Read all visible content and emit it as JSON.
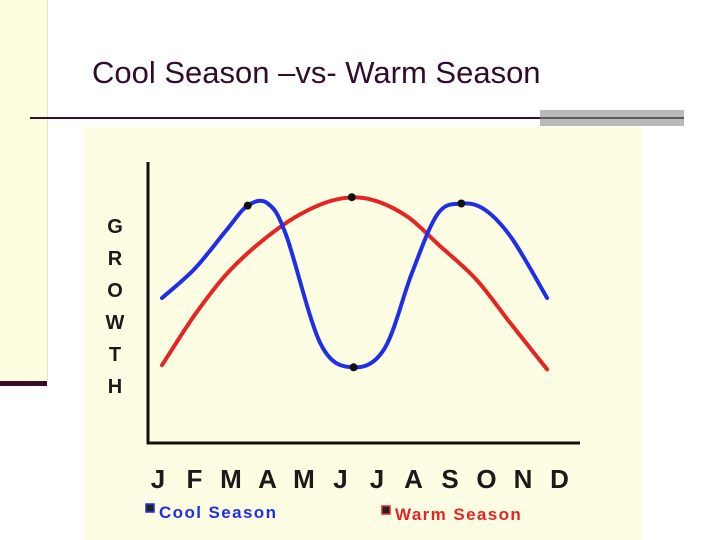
{
  "slide": {
    "title": "Cool Season –vs- Warm Season"
  },
  "chart_data": {
    "type": "line",
    "title": "",
    "xlabel": "",
    "ylabel": "GROWTH",
    "categories": [
      "J",
      "F",
      "M",
      "A",
      "M",
      "J",
      "J",
      "A",
      "S",
      "O",
      "N",
      "D"
    ],
    "ylim": [
      0,
      100
    ],
    "grid": false,
    "legend": "bottom",
    "series": [
      {
        "name": "Cool Season",
        "color": "#1f2ee8",
        "x": [
          0,
          0.9,
          1.75,
          2.35,
          2.9,
          3.4,
          4.35,
          5.25,
          6.1,
          6.85,
          7.55,
          8.2,
          8.85,
          9.6,
          10.55
        ],
        "values": [
          40,
          54,
          72,
          84,
          85,
          70,
          18,
          7,
          16,
          52,
          80,
          85,
          82,
          68,
          40
        ],
        "markers": [
          [
            2.35,
            84
          ],
          [
            5.25,
            7
          ],
          [
            8.2,
            85
          ]
        ]
      },
      {
        "name": "Warm Season",
        "color": "#e52424",
        "x": [
          0,
          0.9,
          1.8,
          2.8,
          3.8,
          4.8,
          5.7,
          6.7,
          7.6,
          8.6,
          9.5,
          10.55
        ],
        "values": [
          8,
          32,
          52,
          68,
          80,
          87,
          87,
          79,
          65,
          49,
          29,
          6
        ],
        "markers": [
          [
            5.2,
            88
          ]
        ]
      }
    ]
  }
}
